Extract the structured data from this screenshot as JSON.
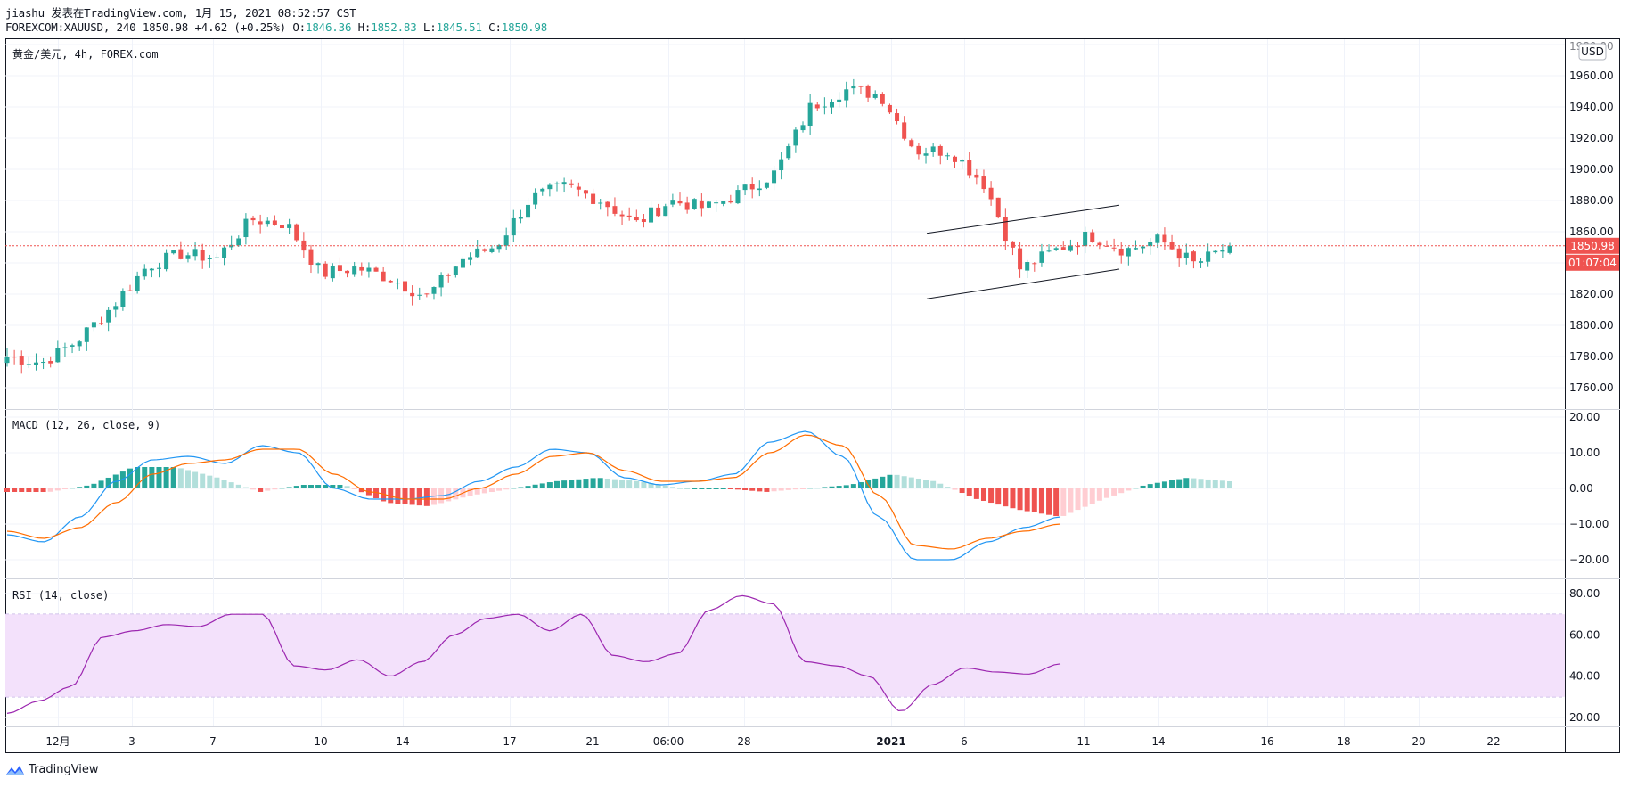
{
  "header": {
    "line1": "jiashu 发表在TradingView.com, 1月 15, 2021 08:52:57 CST",
    "symbol": "FOREXCOM:XAUUSD, 240",
    "last": "1850.98",
    "change": "+4.62 (+0.25%)",
    "o_label": "O:",
    "o": "1846.36",
    "h_label": "H:",
    "h": "1852.83",
    "l_label": "L:",
    "l": "1845.51",
    "c_label": "C:",
    "c": "1850.98"
  },
  "panes": {
    "price_title": "黄金/美元, 4h, FOREX.com",
    "macd_title": "MACD (12, 26, close, 9)",
    "rsi_title": "RSI (14, close)"
  },
  "price_axis": {
    "currency": "USD",
    "ticks": [
      "1980.00",
      "1960.00",
      "1940.00",
      "1920.00",
      "1900.00",
      "1880.00",
      "1860.00",
      "1840.00",
      "1820.00",
      "1800.00",
      "1780.00",
      "1760.00"
    ],
    "last_price": "1850.98",
    "countdown": "01:07:04"
  },
  "macd_axis": {
    "ticks": [
      "20.00",
      "10.00",
      "0.00",
      "−10.00",
      "−20.00"
    ]
  },
  "rsi_axis": {
    "ticks": [
      "80.00",
      "60.00",
      "40.00",
      "20.00"
    ]
  },
  "time_axis": {
    "labels": [
      "12月",
      "3",
      "7",
      "10",
      "14",
      "17",
      "21",
      "06:00",
      "28",
      "2021",
      "6",
      "11",
      "14",
      "16",
      "18",
      "20",
      "22"
    ]
  },
  "footer": {
    "brand": "TradingView"
  },
  "colors": {
    "up": "#26a69a",
    "down": "#ef5350",
    "macd": "#2196f3",
    "signal": "#ff6d00",
    "rsi": "#9c27b0",
    "rsi_band": "#f3e1fb",
    "hist_up_strong": "#26a69a",
    "hist_up_weak": "#b2dfdb",
    "hist_down_strong": "#ef5350",
    "hist_down_weak": "#ffcdd2",
    "label_bg": "#ef5350"
  },
  "chart_data": [
    {
      "type": "candlestick",
      "title": "黄金/美元, 4h, FOREX.com",
      "ylim": [
        1750,
        1990
      ],
      "x_labels": [
        "12月",
        "3",
        "7",
        "10",
        "14",
        "17",
        "21",
        "06:00",
        "28",
        "2021",
        "6",
        "11",
        "14",
        "16",
        "18",
        "20",
        "22"
      ],
      "ohlc_anchor_closes": [
        1780,
        1776,
        1790,
        1812,
        1838,
        1846,
        1843,
        1868,
        1865,
        1833,
        1837,
        1830,
        1818,
        1842,
        1851,
        1882,
        1889,
        1880,
        1865,
        1880,
        1875,
        1885,
        1898,
        1940,
        1951,
        1948,
        1912,
        1912,
        1890,
        1836,
        1848,
        1858,
        1848,
        1855,
        1839,
        1851
      ],
      "annotations": [
        {
          "type": "trend_channel",
          "upper": [
            [
              1040,
              1859
            ],
            [
              1256,
              1877
            ]
          ],
          "lower": [
            [
              1040,
              1817
            ],
            [
              1256,
              1836
            ]
          ]
        }
      ],
      "last": 1850.98,
      "open": 1846.36,
      "high": 1852.83,
      "low": 1845.51,
      "close": 1850.98
    },
    {
      "type": "line",
      "title": "MACD (12, 26, close, 9)",
      "ylim": [
        -25,
        22
      ],
      "series": [
        {
          "name": "MACD",
          "values": [
            -13,
            -15,
            -8,
            2,
            8,
            9,
            7,
            12,
            10,
            0,
            -3,
            -3,
            -2,
            2,
            6,
            11,
            10,
            3,
            1,
            2,
            4,
            13,
            16,
            9,
            -8,
            -20,
            -20,
            -15,
            -11,
            -8
          ]
        },
        {
          "name": "Signal",
          "values": [
            -12,
            -14,
            -11,
            -4,
            4,
            7,
            8,
            11,
            11,
            4,
            -1,
            -3,
            -3,
            0,
            4,
            9,
            10,
            5,
            2,
            2,
            3,
            10,
            15,
            12,
            -2,
            -16,
            -17,
            -14,
            -12,
            -10
          ]
        }
      ],
      "histogram": [
        -1,
        -1,
        1,
        6,
        6,
        3,
        -1,
        1,
        1,
        -4,
        -5,
        -2,
        0,
        2,
        3,
        2,
        0,
        0,
        -1,
        0,
        1,
        4,
        2,
        -3,
        -6,
        -8,
        -3,
        1,
        3,
        2
      ]
    },
    {
      "type": "line",
      "title": "RSI (14, close)",
      "ylim": [
        15,
        85
      ],
      "bands": [
        30,
        70
      ],
      "series": [
        {
          "name": "RSI",
          "values": [
            22,
            28,
            35,
            59,
            62,
            65,
            64,
            70,
            70,
            45,
            43,
            48,
            40,
            47,
            60,
            68,
            70,
            62,
            70,
            50,
            47,
            51,
            72,
            79,
            75,
            47,
            45,
            40,
            23,
            36,
            44,
            42,
            41,
            46
          ]
        }
      ]
    }
  ]
}
